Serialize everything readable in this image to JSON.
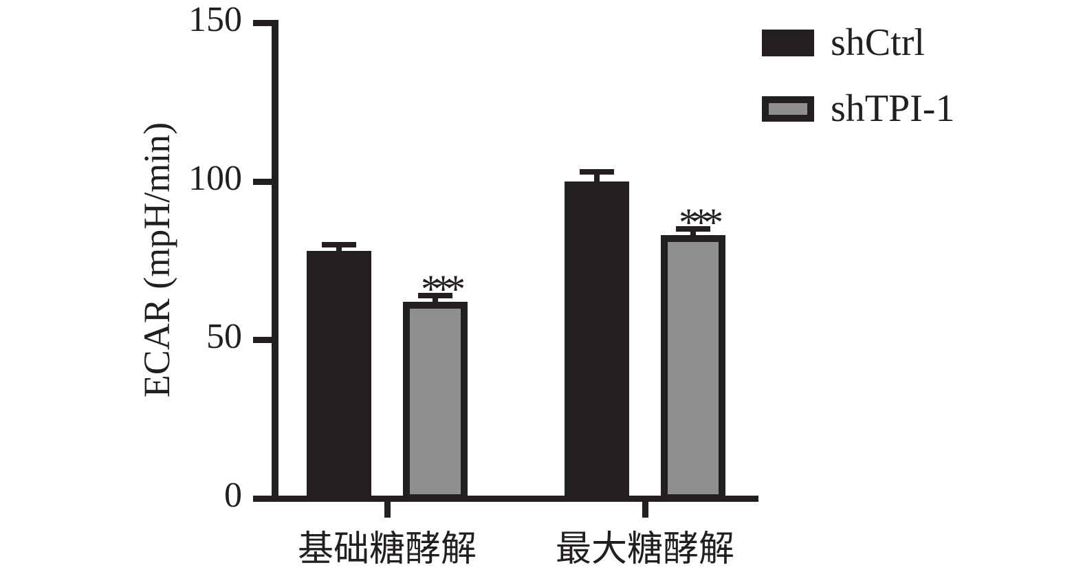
{
  "figure": {
    "background": "#ffffff",
    "text_color": "#231f20"
  },
  "chart_data": {
    "type": "bar",
    "title": "",
    "xlabel": "",
    "ylabel": "ECAR (mpH/min)",
    "categories": [
      "基础糖酵解",
      "最大糖酵解"
    ],
    "series": [
      {
        "name": "shCtrl",
        "color": "#231f20",
        "values": [
          78,
          100
        ],
        "errors_upper": [
          2,
          3
        ]
      },
      {
        "name": "shTPI-1",
        "color": "#8f8f91",
        "border_color": "#231f20",
        "values": [
          62,
          83
        ],
        "errors_upper": [
          2,
          2
        ],
        "significance": [
          "***",
          "***"
        ]
      }
    ],
    "ylim": [
      0,
      150
    ],
    "yticks": [
      0,
      50,
      100,
      150
    ],
    "grid": false,
    "error_bars": "upper-only with caps",
    "legend_position": "top-right",
    "axis_color": "#231f20"
  }
}
